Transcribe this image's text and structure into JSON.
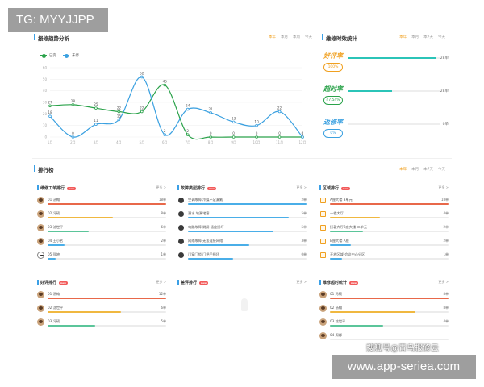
{
  "overlay": {
    "tg": "TG: MYYJJPP",
    "sohu": "搜狐号@青鸟报修云",
    "url": "www.app-seriea.com"
  },
  "trend": {
    "title": "报修趋势分析",
    "filters": [
      "本年",
      "本月",
      "本周",
      "今天"
    ],
    "active_filter": 0,
    "legend": [
      {
        "name": "已完",
        "color": "#2aa24a"
      },
      {
        "name": "未修",
        "color": "#3aa0e0"
      }
    ],
    "chart_data": {
      "type": "line",
      "x": [
        "1月",
        "2月",
        "3月",
        "4月",
        "5月",
        "6月",
        "7月",
        "8月",
        "9月",
        "10月",
        "11月",
        "12月"
      ],
      "ylim": [
        0,
        60
      ],
      "y_ticks": [
        0,
        10,
        20,
        30,
        40,
        50,
        60
      ],
      "series": [
        {
          "name": "已完",
          "color": "#2aa24a",
          "values": [
            27,
            28,
            25,
            22,
            22,
            45,
            2,
            0,
            0,
            0,
            0,
            0
          ]
        },
        {
          "name": "未修",
          "color": "#3aa0e0",
          "values": [
            18,
            0,
            11,
            15,
            52,
            2,
            24,
            21,
            13,
            10,
            22,
            0
          ]
        }
      ]
    }
  },
  "efficiency": {
    "title": "维修时效统计",
    "filters": [
      "本年",
      "本月",
      "本7天",
      "今天"
    ],
    "items": [
      {
        "name": "好评率",
        "pill": "100%",
        "value": "28单",
        "color": "#f0a020",
        "bar_color": "#2bc4b8",
        "fill": 0.95
      },
      {
        "name": "超时率",
        "pill": "47.54%",
        "value": "28单",
        "color": "#2aa24a",
        "bar_color": "#2bc4b8",
        "fill": 0.48
      },
      {
        "name": "返修率",
        "pill": "0%",
        "value": "0单",
        "color": "#3aa0e0",
        "bar_color": "#3aa0e0",
        "fill": 0.0
      }
    ]
  },
  "ranking": {
    "title": "排行榜",
    "filters": [
      "本年",
      "本月",
      "本7天",
      "今天"
    ],
    "more": "更多 >",
    "tag": "new",
    "columns_top": [
      {
        "title": "维修工单排行",
        "rows": [
          {
            "name": "01 汤翰",
            "value": "18单",
            "color": "#e8684a",
            "fill": 1.0,
            "icon": "avatar"
          },
          {
            "name": "02 冯硕",
            "value": "8单",
            "color": "#f0b840",
            "fill": 0.55,
            "icon": "avatar"
          },
          {
            "name": "03 沈世平",
            "value": "6单",
            "color": "#5bc59a",
            "fill": 0.35,
            "icon": "avatar"
          },
          {
            "name": "04 王小名",
            "value": "2单",
            "color": "#4aaee8",
            "fill": 0.14,
            "icon": "avatar"
          },
          {
            "name": "05 邵婷",
            "value": "1单",
            "color": "#4aaee8",
            "fill": 0.07,
            "icon": "panda"
          }
        ]
      },
      {
        "title": "故障类型排行",
        "rows": [
          {
            "name": "空调故障 冷媒不足漏氟",
            "value": "2单",
            "color": "#4aaee8",
            "fill": 1.0,
            "icon": "dot"
          },
          {
            "name": "漏水 地漏堵塞",
            "value": "5单",
            "color": "#4aaee8",
            "fill": 0.85,
            "icon": "dot"
          },
          {
            "name": "电路故障 跳闸 插座损坏",
            "value": "5单",
            "color": "#4aaee8",
            "fill": 0.72,
            "icon": "dot"
          },
          {
            "name": "网络故障 无法连接网络",
            "value": "3单",
            "color": "#4aaee8",
            "fill": 0.52,
            "icon": "dot"
          },
          {
            "name": "门窗门锁 门把手损坏",
            "value": "0单",
            "color": "#4aaee8",
            "fill": 0.38,
            "icon": "dot"
          }
        ]
      },
      {
        "title": "区域排行",
        "rows": [
          {
            "name": "A座大楼 3单元",
            "value": "18单",
            "color": "#e8684a",
            "fill": 1.0,
            "icon": "sq"
          },
          {
            "name": "一楼大厅",
            "value": "4单",
            "color": "#f0b840",
            "fill": 0.42,
            "icon": "sq"
          },
          {
            "name": "接着大厅B座大楼 二单元",
            "value": "2单",
            "color": "#5bc59a",
            "fill": 0.28,
            "icon": "sq"
          },
          {
            "name": "B座大楼 A座",
            "value": "2单",
            "color": "#4aaee8",
            "fill": 0.18,
            "icon": "sq"
          },
          {
            "name": "开放区域 会议中心分区",
            "value": "1单",
            "color": "#4aaee8",
            "fill": 0.1,
            "icon": "sq"
          }
        ]
      }
    ],
    "columns_bottom": [
      {
        "title": "好评排行",
        "rows": [
          {
            "name": "01 汤翰",
            "value": "12单",
            "color": "#e8684a",
            "fill": 1.0,
            "icon": "avatar"
          },
          {
            "name": "02 沈世平",
            "value": "6单",
            "color": "#f0b840",
            "fill": 0.62,
            "icon": "avatar"
          },
          {
            "name": "03 冯硕",
            "value": "5单",
            "color": "#5bc59a",
            "fill": 0.4,
            "icon": "avatar"
          }
        ]
      },
      {
        "title": "差评排行",
        "rows": []
      },
      {
        "title": "维修超时统计",
        "rows": [
          {
            "name": "01 冯硕",
            "value": "8单",
            "color": "#e8684a",
            "fill": 1.0,
            "icon": "avatar"
          },
          {
            "name": "02 汤翰",
            "value": "8单",
            "color": "#f0b840",
            "fill": 0.72,
            "icon": "avatar"
          },
          {
            "name": "03 沈世平",
            "value": "4单",
            "color": "#5bc59a",
            "fill": 0.45,
            "icon": "avatar"
          },
          {
            "name": "04 周娜",
            "value": "",
            "color": "#4aaee8",
            "fill": 0.0,
            "icon": "avatar"
          }
        ]
      }
    ]
  }
}
